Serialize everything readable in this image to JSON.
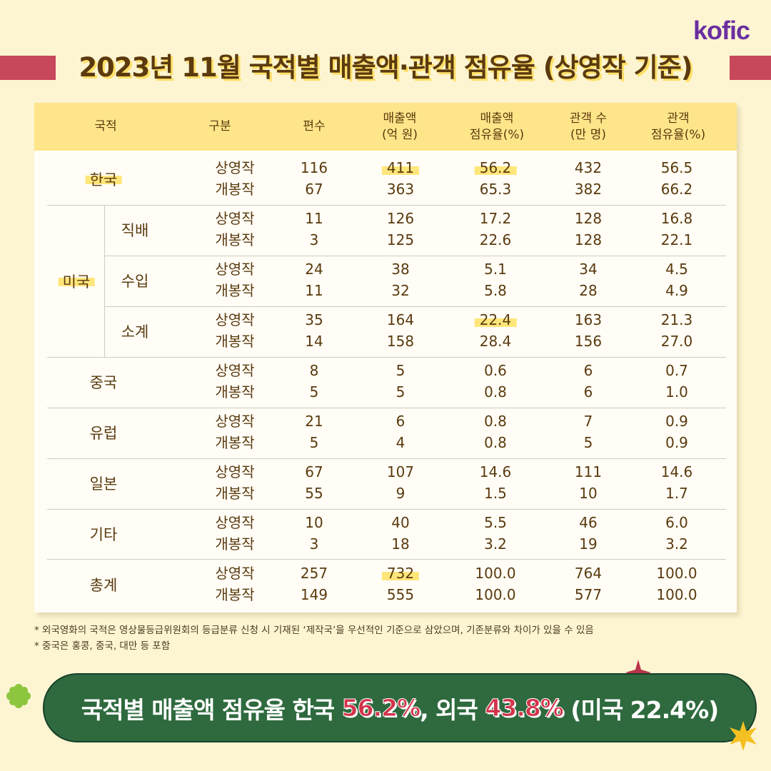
{
  "brand": {
    "logo": "kofic"
  },
  "title": "2023년 11월 국적별 매출액·관객 점유율 (상영작 기준)",
  "headers": [
    "국적",
    "구분",
    "편수",
    "매출액\n(억 원)",
    "매출액\n점유율(%)",
    "관객 수\n(만 명)",
    "관객\n점유율(%)"
  ],
  "labels": {
    "korea": "한국",
    "usa": "미국",
    "usa_direct": "직배",
    "usa_import": "수입",
    "usa_subtotal": "소계",
    "china": "중국",
    "europe": "유럽",
    "japan": "일본",
    "other": "기타",
    "total": "총계"
  },
  "rows": [
    {
      "type": "상영작",
      "films": "116",
      "sales": "411",
      "sales_share": "56.2",
      "audience": "432",
      "audience_share": "56.5"
    },
    {
      "type": "개봉작",
      "films": "67",
      "sales": "363",
      "sales_share": "65.3",
      "audience": "382",
      "audience_share": "66.2"
    },
    {
      "type": "상영작",
      "films": "11",
      "sales": "126",
      "sales_share": "17.2",
      "audience": "128",
      "audience_share": "16.8"
    },
    {
      "type": "개봉작",
      "films": "3",
      "sales": "125",
      "sales_share": "22.6",
      "audience": "128",
      "audience_share": "22.1"
    },
    {
      "type": "상영작",
      "films": "24",
      "sales": "38",
      "sales_share": "5.1",
      "audience": "34",
      "audience_share": "4.5"
    },
    {
      "type": "개봉작",
      "films": "11",
      "sales": "32",
      "sales_share": "5.8",
      "audience": "28",
      "audience_share": "4.9"
    },
    {
      "type": "상영작",
      "films": "35",
      "sales": "164",
      "sales_share": "22.4",
      "audience": "163",
      "audience_share": "21.3"
    },
    {
      "type": "개봉작",
      "films": "14",
      "sales": "158",
      "sales_share": "28.4",
      "audience": "156",
      "audience_share": "27.0"
    },
    {
      "type": "상영작",
      "films": "8",
      "sales": "5",
      "sales_share": "0.6",
      "audience": "6",
      "audience_share": "0.7"
    },
    {
      "type": "개봉작",
      "films": "5",
      "sales": "5",
      "sales_share": "0.8",
      "audience": "6",
      "audience_share": "1.0"
    },
    {
      "type": "상영작",
      "films": "21",
      "sales": "6",
      "sales_share": "0.8",
      "audience": "7",
      "audience_share": "0.9"
    },
    {
      "type": "개봉작",
      "films": "5",
      "sales": "4",
      "sales_share": "0.8",
      "audience": "5",
      "audience_share": "0.9"
    },
    {
      "type": "상영작",
      "films": "67",
      "sales": "107",
      "sales_share": "14.6",
      "audience": "111",
      "audience_share": "14.6"
    },
    {
      "type": "개봉작",
      "films": "55",
      "sales": "9",
      "sales_share": "1.5",
      "audience": "10",
      "audience_share": "1.7"
    },
    {
      "type": "상영작",
      "films": "10",
      "sales": "40",
      "sales_share": "5.5",
      "audience": "46",
      "audience_share": "6.0"
    },
    {
      "type": "개봉작",
      "films": "3",
      "sales": "18",
      "sales_share": "3.2",
      "audience": "19",
      "audience_share": "3.2"
    },
    {
      "type": "상영작",
      "films": "257",
      "sales": "732",
      "sales_share": "100.0",
      "audience": "764",
      "audience_share": "100.0"
    },
    {
      "type": "개봉작",
      "films": "149",
      "sales": "555",
      "sales_share": "100.0",
      "audience": "577",
      "audience_share": "100.0"
    }
  ],
  "notes": [
    "* 외국영화의 국적은 영상물등급위원회의 등급분류 신청 시 기재된 ‘제작국’을 우선적인 기준으로 삼았으며, 기존분류와 차이가 있을 수 있음",
    "* 중국은 홍콩, 중국, 대만 등 포함"
  ],
  "banner": {
    "text1": "국적별 매출액 점유율 한국 ",
    "korea_pct": "56.2%",
    "text2": ", 외국 ",
    "foreign_pct": "43.8%",
    "text3": " (미국 22.4%)"
  },
  "colors": {
    "background": "#FDF5D2",
    "header_fill": "#FFE58A",
    "highlight": "#FFE67A",
    "title_band": "#C8485B",
    "banner_fill": "#2E6A3E",
    "pct_red": "#D3334A",
    "logo": "#6A2FA0"
  }
}
